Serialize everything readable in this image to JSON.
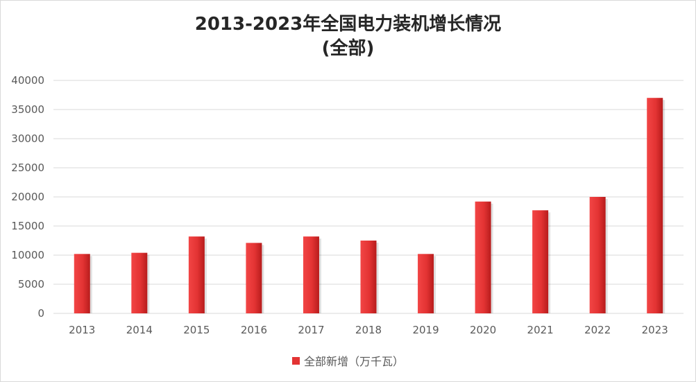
{
  "chart_data": {
    "type": "bar",
    "title": "2013-2023年全国电力装机增长情况",
    "subtitle": "(全部)",
    "xlabel": "",
    "ylabel": "",
    "categories": [
      "2013",
      "2014",
      "2015",
      "2016",
      "2017",
      "2018",
      "2019",
      "2020",
      "2021",
      "2022",
      "2023"
    ],
    "series": [
      {
        "name": "全部新增（万千瓦）",
        "values": [
          10200,
          10400,
          13200,
          12100,
          13200,
          12500,
          10200,
          19200,
          17700,
          20000,
          37000
        ]
      }
    ],
    "ylim": [
      0,
      40000
    ],
    "yticks": [
      "0",
      "5000",
      "10000",
      "15000",
      "20000",
      "25000",
      "30000",
      "35000",
      "40000"
    ],
    "grid": true,
    "legend_position": "bottom",
    "colors": {
      "bar": "#e33333",
      "bar_dark": "#b71c1c",
      "grid": "#d9d9d9",
      "text": "#595959",
      "title": "#262626"
    }
  }
}
